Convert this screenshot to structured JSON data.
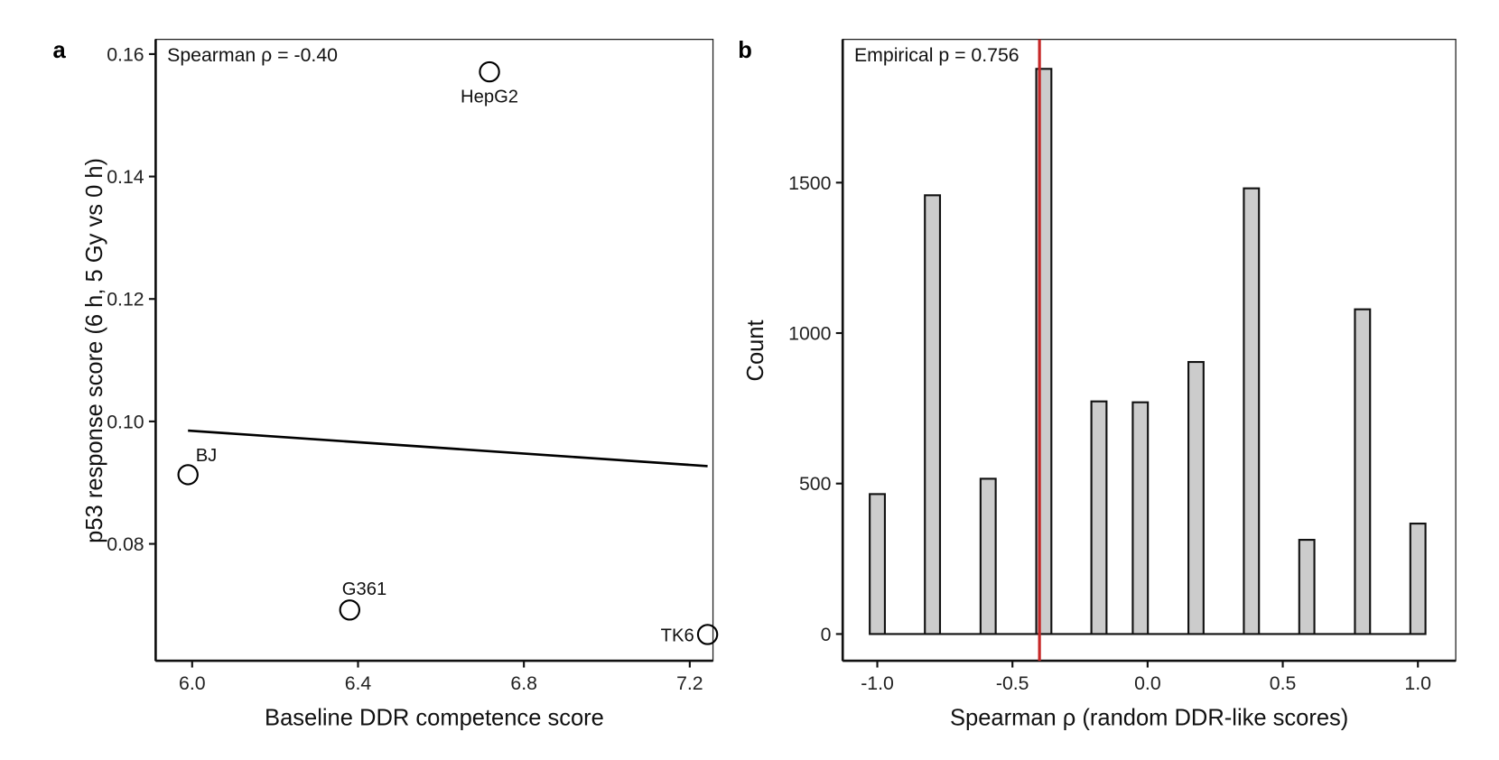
{
  "chart_data": [
    {
      "panel": "a",
      "type": "scatter",
      "annotation": "Spearman ρ = -0.40",
      "xlabel": "Baseline DDR competence score",
      "ylabel": "p53 response score (6 h, 5 Gy vs 0 h)",
      "xlim": [
        5.912,
        7.256
      ],
      "ylim": [
        0.0609,
        0.1624
      ],
      "xticks": [
        6.0,
        6.4,
        6.8,
        7.2
      ],
      "xtick_labels": [
        "6.0",
        "6.4",
        "6.8",
        "7.2"
      ],
      "yticks": [
        0.08,
        0.1,
        0.12,
        0.14,
        0.16
      ],
      "ytick_labels": [
        "0.08",
        "0.10",
        "0.12",
        "0.14",
        "0.16"
      ],
      "points": [
        {
          "label": "BJ",
          "x": 5.99,
          "y": 0.0913
        },
        {
          "label": "G361",
          "x": 6.38,
          "y": 0.0692
        },
        {
          "label": "HepG2",
          "x": 6.717,
          "y": 0.1571
        },
        {
          "label": "TK6",
          "x": 7.243,
          "y": 0.0652
        }
      ],
      "fit_line": {
        "x": [
          5.99,
          7.243
        ],
        "y": [
          0.0985,
          0.0927
        ]
      },
      "grid": false
    },
    {
      "panel": "b",
      "type": "bar",
      "annotation": "Empirical p = 0.756",
      "xlabel": "Spearman ρ (random DDR-like scores)",
      "ylabel": "Count",
      "xlim": [
        -1.128,
        1.14
      ],
      "ylim": [
        -89,
        1976
      ],
      "xticks": [
        -1.0,
        -0.5,
        0.0,
        0.5,
        1.0
      ],
      "xtick_labels": [
        "-1.0",
        "-0.5",
        "0.0",
        "0.5",
        "1.0"
      ],
      "yticks": [
        0,
        500,
        1000,
        1500
      ],
      "ytick_labels": [
        "0",
        "500",
        "1000",
        "1500"
      ],
      "bin_width": 0.056,
      "x": [
        -1.0,
        -0.796,
        -0.59,
        -0.384,
        -0.18,
        -0.027,
        0.179,
        0.384,
        0.589,
        0.795,
        1.0
      ],
      "values": [
        465,
        1458,
        516,
        1878,
        773,
        770,
        904,
        1481,
        313,
        1079,
        367
      ],
      "reference_line": {
        "x": -0.4,
        "color": "#c62828"
      },
      "bar_fill": "#cccccc",
      "grid": false
    }
  ]
}
